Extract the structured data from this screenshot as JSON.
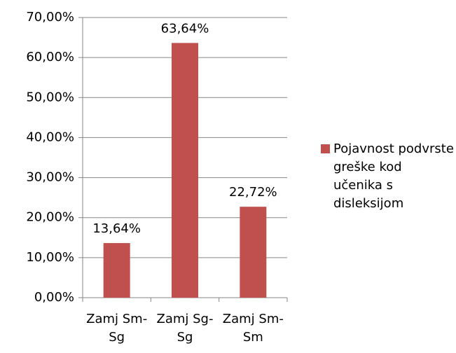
{
  "chart_data": {
    "type": "bar",
    "categories": [
      "Zamj Sm-Sg",
      "Zamj Sg-Sg",
      "Zamj Sm-Sm"
    ],
    "series": [
      {
        "name": "Pojavnost podvrste greške kod učenika s disleksijom",
        "color": "#c0504d",
        "values": [
          13.64,
          63.64,
          22.72
        ],
        "value_labels": [
          "13,64%",
          "63,64%",
          "22,72%"
        ]
      }
    ],
    "ylim": [
      0,
      70
    ],
    "yticks": [
      {
        "value": 0,
        "label": "0,00%"
      },
      {
        "value": 10,
        "label": "10,00%"
      },
      {
        "value": 20,
        "label": "20,00%"
      },
      {
        "value": 30,
        "label": "30,00%"
      },
      {
        "value": 40,
        "label": "40,00%"
      },
      {
        "value": 50,
        "label": "50,00%"
      },
      {
        "value": 60,
        "label": "60,00%"
      },
      {
        "value": 70,
        "label": "70,00%"
      }
    ],
    "grid": true,
    "legend": "right"
  }
}
